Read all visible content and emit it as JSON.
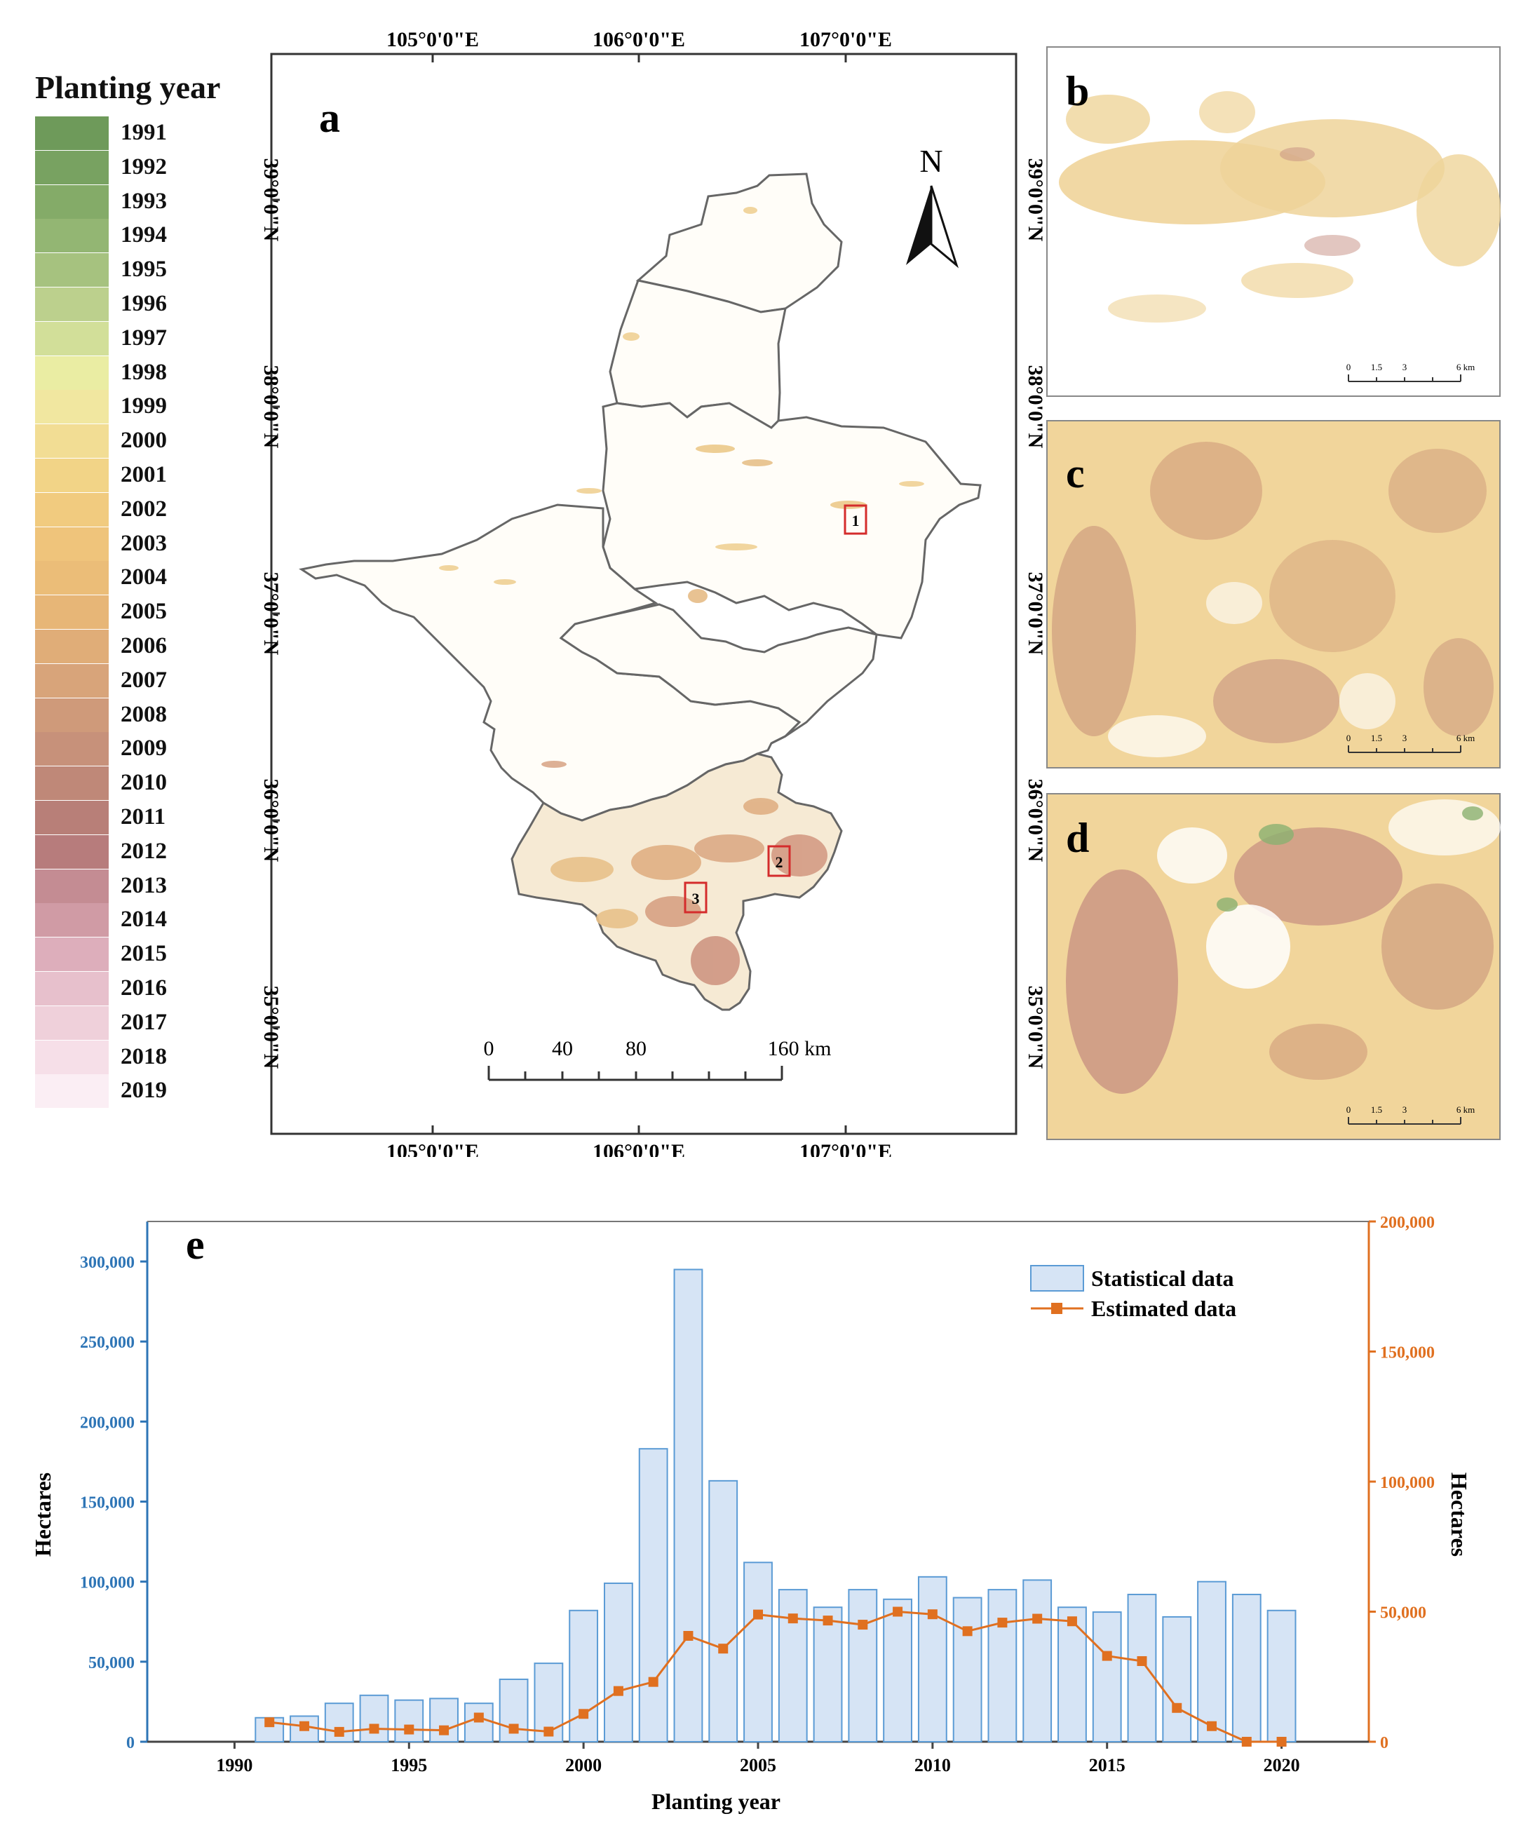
{
  "legend": {
    "title": "Planting year",
    "items": [
      {
        "year": "1991",
        "color": "#6e9a5a"
      },
      {
        "year": "1992",
        "color": "#78a261"
      },
      {
        "year": "1993",
        "color": "#84ab68"
      },
      {
        "year": "1994",
        "color": "#93b673"
      },
      {
        "year": "1995",
        "color": "#a6c27f"
      },
      {
        "year": "1996",
        "color": "#bcd08d"
      },
      {
        "year": "1997",
        "color": "#d2df99"
      },
      {
        "year": "1998",
        "color": "#eaeda3"
      },
      {
        "year": "1999",
        "color": "#f1e7a0"
      },
      {
        "year": "2000",
        "color": "#f2dd94"
      },
      {
        "year": "2001",
        "color": "#f2d487"
      },
      {
        "year": "2002",
        "color": "#f1cb7f"
      },
      {
        "year": "2003",
        "color": "#efc47b"
      },
      {
        "year": "2004",
        "color": "#ebbd78"
      },
      {
        "year": "2005",
        "color": "#e7b677"
      },
      {
        "year": "2006",
        "color": "#e0ad78"
      },
      {
        "year": "2007",
        "color": "#d8a47a"
      },
      {
        "year": "2008",
        "color": "#cf9a7a"
      },
      {
        "year": "2009",
        "color": "#c7917a"
      },
      {
        "year": "2010",
        "color": "#bf8878"
      },
      {
        "year": "2011",
        "color": "#b87f78"
      },
      {
        "year": "2012",
        "color": "#b77c7c"
      },
      {
        "year": "2013",
        "color": "#c48c93"
      },
      {
        "year": "2014",
        "color": "#d09ba5"
      },
      {
        "year": "2015",
        "color": "#ddaebb"
      },
      {
        "year": "2016",
        "color": "#e7c0cc"
      },
      {
        "year": "2017",
        "color": "#efd0da"
      },
      {
        "year": "2018",
        "color": "#f6dfe8"
      },
      {
        "year": "2019",
        "color": "#fbeef4"
      }
    ]
  },
  "map_a": {
    "label": "a",
    "lon_top": [
      "105°0'0\"E",
      "106°0'0\"E",
      "107°0'0\"E"
    ],
    "lon_bottom": [
      "105°0'0\"E",
      "106°0'0\"E",
      "107°0'0\"E"
    ],
    "lat": [
      "39°0'0\"N",
      "38°0'0\"N",
      "37°0'0\"N",
      "36°0'0\"N",
      "35°0'0\"N"
    ],
    "north": "N",
    "scale_labels": [
      "0",
      "40",
      "80",
      "160 km"
    ],
    "boxes": [
      "1",
      "2",
      "3"
    ]
  },
  "insets": [
    {
      "label": "b",
      "scale": [
        "0",
        "1.5",
        "3",
        "6 km"
      ]
    },
    {
      "label": "c",
      "scale": [
        "0",
        "1.5",
        "3",
        "6 km"
      ]
    },
    {
      "label": "d",
      "scale": [
        "0",
        "1.5",
        "3",
        "6 km"
      ]
    }
  ],
  "inset_lat": [
    "39°0'0\"N",
    "38°0'0\"N",
    "37°0'0\"N",
    "36°0'0\"N",
    "35°0'0\"N"
  ],
  "colors": {
    "bars": "#d6e4f5",
    "bar_edge": "#5b9bd5",
    "line": "#e07020",
    "left_axis": "#2e75b6",
    "right_axis": "#e07020"
  },
  "chart_data": {
    "type": "bar",
    "panel_label": "e",
    "xlabel": "Planting year",
    "ylabel_left": "Hectares",
    "ylabel_right": "Hectares",
    "xlim": [
      1987.5,
      2022.5
    ],
    "x_ticks": [
      "1990",
      "1995",
      "2000",
      "2005",
      "2010",
      "2015",
      "2020"
    ],
    "ylim_left": [
      0,
      325000
    ],
    "ylim_right": [
      0,
      200000
    ],
    "y_ticks_left": [
      "0",
      "50,000",
      "100,000",
      "150,000",
      "200,000",
      "250,000",
      "300,000"
    ],
    "y_ticks_right": [
      "0",
      "50,000",
      "100,000",
      "150,000",
      "200,000"
    ],
    "legend_position": "top-right",
    "series": [
      {
        "name": "Statistical data",
        "type": "bar",
        "axis": "left",
        "x": [
          1991,
          1992,
          1993,
          1994,
          1995,
          1996,
          1997,
          1998,
          1999,
          2000,
          2001,
          2002,
          2003,
          2004,
          2005,
          2006,
          2007,
          2008,
          2009,
          2010,
          2011,
          2012,
          2013,
          2014,
          2015,
          2016,
          2017,
          2018,
          2019,
          2020
        ],
        "values": [
          15000,
          16000,
          24000,
          29000,
          26000,
          27000,
          24000,
          39000,
          49000,
          82000,
          99000,
          183000,
          295000,
          163000,
          112000,
          95000,
          84000,
          95000,
          89000,
          103000,
          90000,
          95000,
          101000,
          84000,
          81000,
          92000,
          78000,
          100000,
          92000,
          82000
        ]
      },
      {
        "name": "Estimated data",
        "type": "line",
        "axis": "right",
        "x": [
          1991,
          1992,
          1993,
          1994,
          1995,
          1996,
          1997,
          1998,
          1999,
          2000,
          2001,
          2002,
          2003,
          2004,
          2005,
          2006,
          2007,
          2008,
          2009,
          2010,
          2011,
          2012,
          2013,
          2014,
          2015,
          2016,
          2017,
          2018,
          2019,
          2020
        ],
        "values": [
          7500,
          6000,
          3800,
          5000,
          4700,
          4400,
          9300,
          5000,
          3900,
          10700,
          19500,
          23000,
          40700,
          35800,
          48900,
          47400,
          46600,
          45000,
          50000,
          49000,
          42500,
          45800,
          47300,
          46300,
          33000,
          31000,
          13000,
          6000,
          0,
          0
        ]
      }
    ]
  }
}
